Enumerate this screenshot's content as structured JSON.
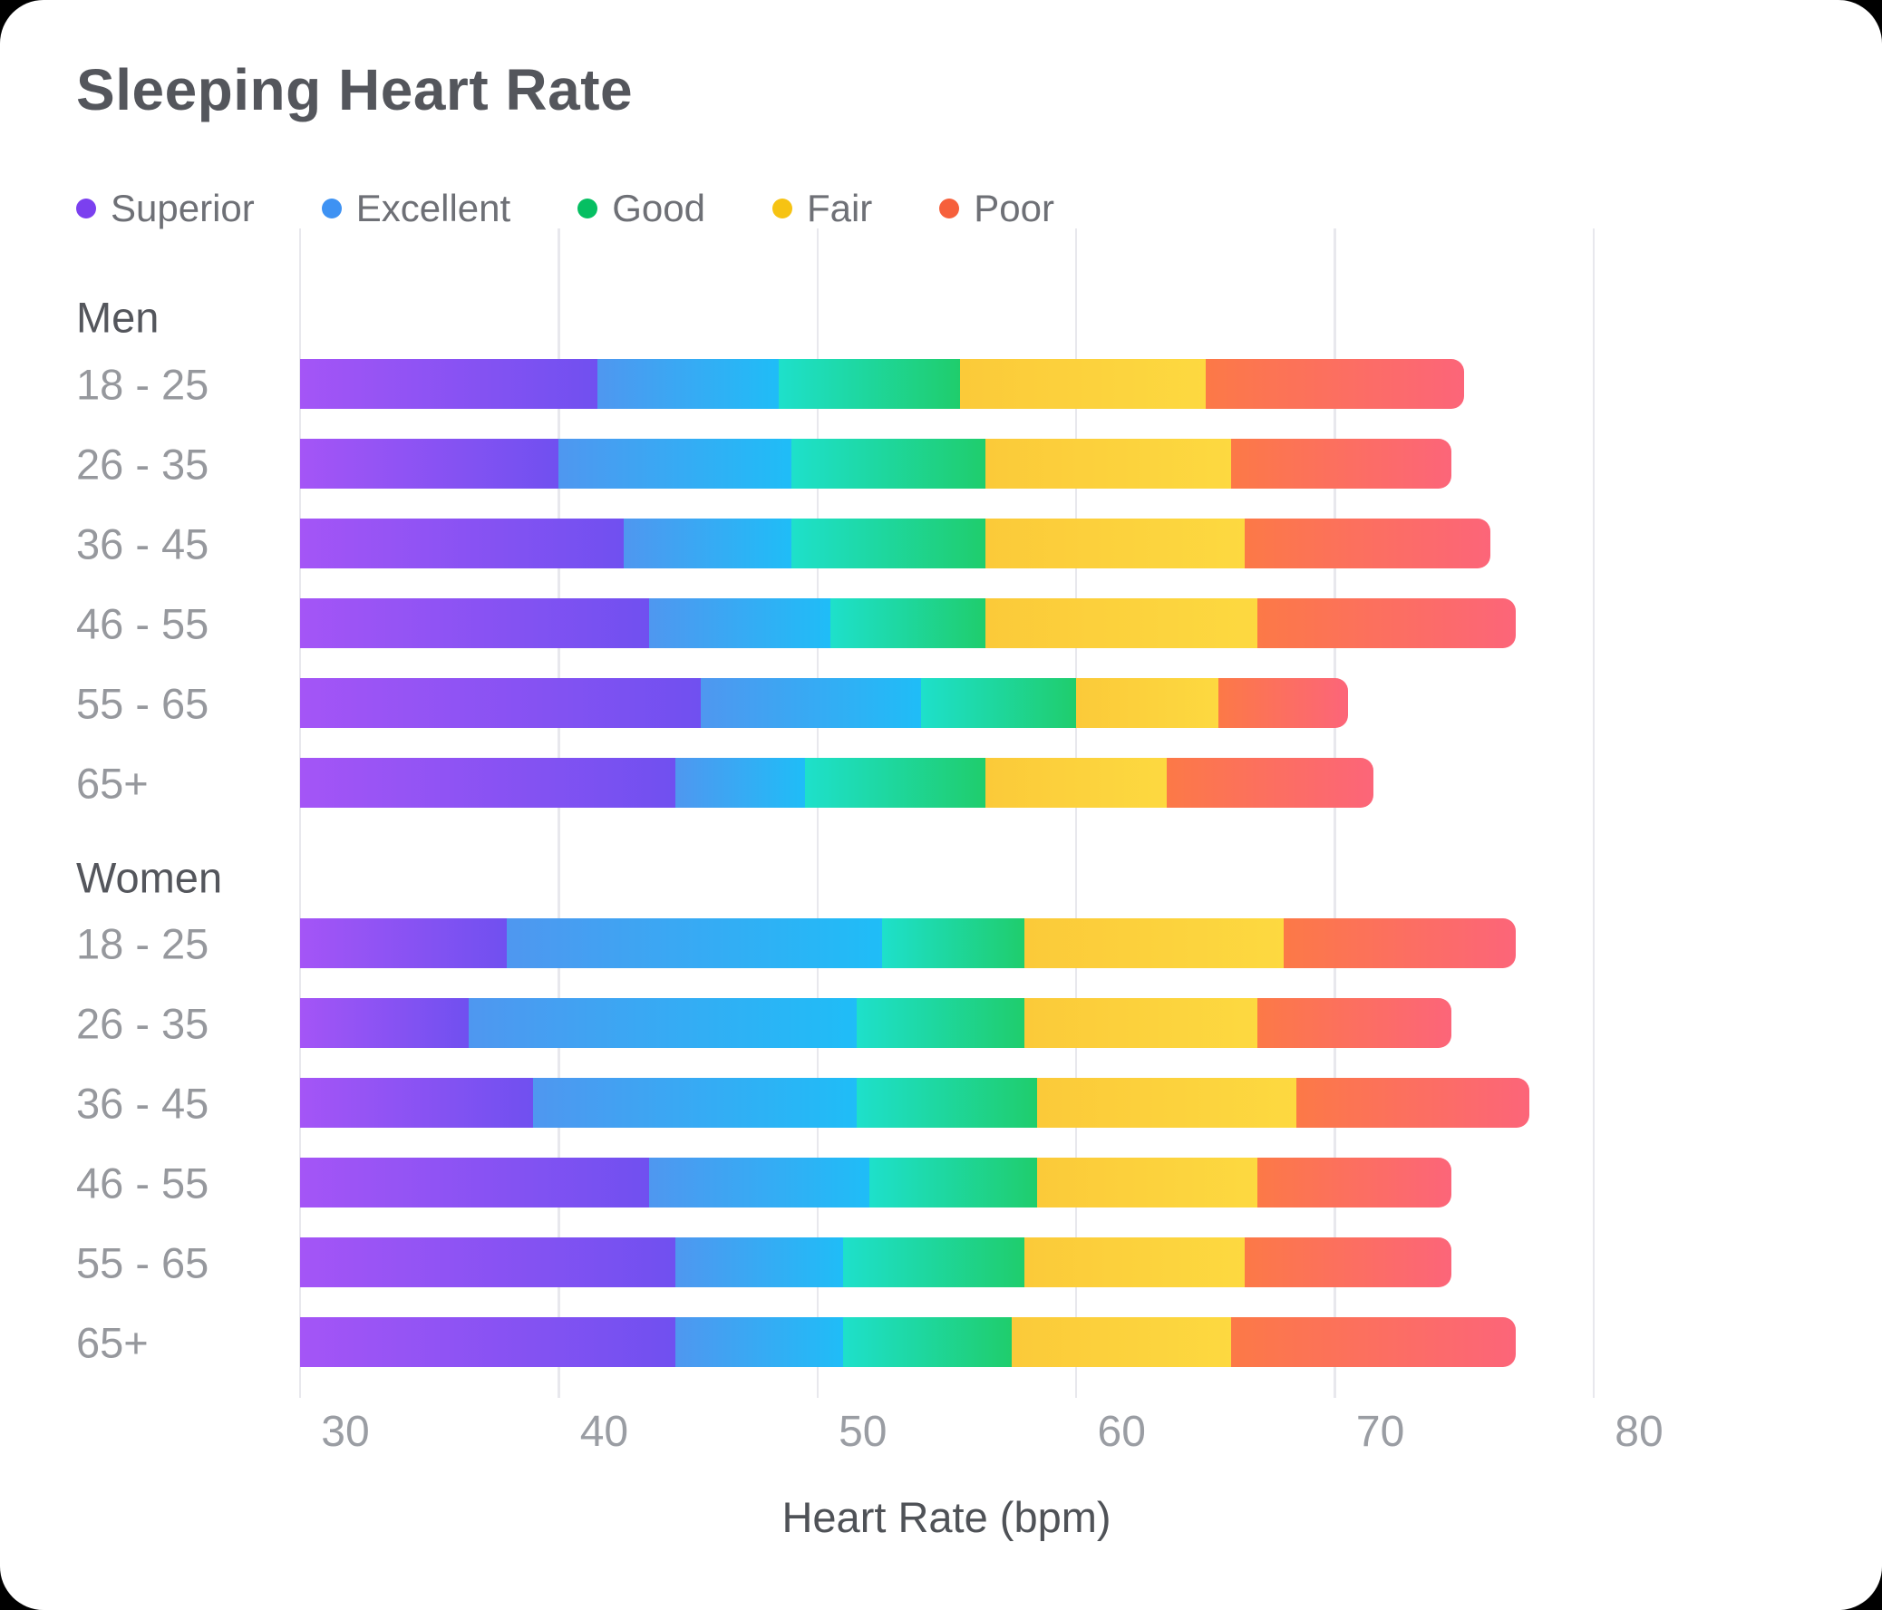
{
  "chart_data": {
    "type": "bar",
    "orientation": "horizontal",
    "stacked": true,
    "title": "Sleeping Heart Rate",
    "xlabel": "Heart Rate (bpm)",
    "xlim": [
      30,
      80
    ],
    "xticks": [
      "30",
      "40",
      "50",
      "60",
      "70",
      "80"
    ],
    "grid": "vertical-only",
    "legend_position": "top-left",
    "series": [
      {
        "name": "Superior",
        "dot_color": "#7b40ef",
        "gradient": [
          "#a455f6",
          "#7050f0"
        ]
      },
      {
        "name": "Excellent",
        "dot_color": "#3e92f3",
        "gradient": [
          "#4f97f0",
          "#1fbdf7"
        ]
      },
      {
        "name": "Good",
        "dot_color": "#06bf62",
        "gradient": [
          "#1ee0cb",
          "#1fcd6c"
        ]
      },
      {
        "name": "Fair",
        "dot_color": "#f6c313",
        "gradient": [
          "#fbca39",
          "#fdd940"
        ]
      },
      {
        "name": "Poor",
        "dot_color": "#f6603c",
        "gradient": [
          "#fc7947",
          "#fc6579"
        ]
      }
    ],
    "groups": [
      {
        "label": "Men",
        "rows": [
          {
            "label": "18 - 25",
            "bounds_bpm": [
              30,
              41.5,
              48.5,
              55.5,
              65,
              75
            ]
          },
          {
            "label": "26 - 35",
            "bounds_bpm": [
              30,
              40,
              49,
              56.5,
              66,
              74.5
            ]
          },
          {
            "label": "36 - 45",
            "bounds_bpm": [
              30,
              42.5,
              49,
              56.5,
              66.5,
              76
            ]
          },
          {
            "label": "46 - 55",
            "bounds_bpm": [
              30,
              43.5,
              50.5,
              56.5,
              67,
              77
            ]
          },
          {
            "label": "55 - 65",
            "bounds_bpm": [
              30,
              45.5,
              54,
              60,
              65.5,
              70.5
            ]
          },
          {
            "label": "65+",
            "bounds_bpm": [
              30,
              44.5,
              49.5,
              56.5,
              63.5,
              71.5
            ]
          }
        ]
      },
      {
        "label": "Women",
        "rows": [
          {
            "label": "18 - 25",
            "bounds_bpm": [
              30,
              38,
              52.5,
              58,
              68,
              77
            ]
          },
          {
            "label": "26 - 35",
            "bounds_bpm": [
              30,
              36.5,
              51.5,
              58,
              67,
              74.5
            ]
          },
          {
            "label": "36 - 45",
            "bounds_bpm": [
              30,
              39,
              51.5,
              58.5,
              68.5,
              77.5
            ]
          },
          {
            "label": "46 - 55",
            "bounds_bpm": [
              30,
              43.5,
              52,
              58.5,
              67,
              74.5
            ]
          },
          {
            "label": "55 - 65",
            "bounds_bpm": [
              30,
              44.5,
              51,
              58,
              66.5,
              74.5
            ]
          },
          {
            "label": "65+",
            "bounds_bpm": [
              30,
              44.5,
              51,
              57.5,
              66,
              77
            ]
          }
        ]
      }
    ]
  }
}
